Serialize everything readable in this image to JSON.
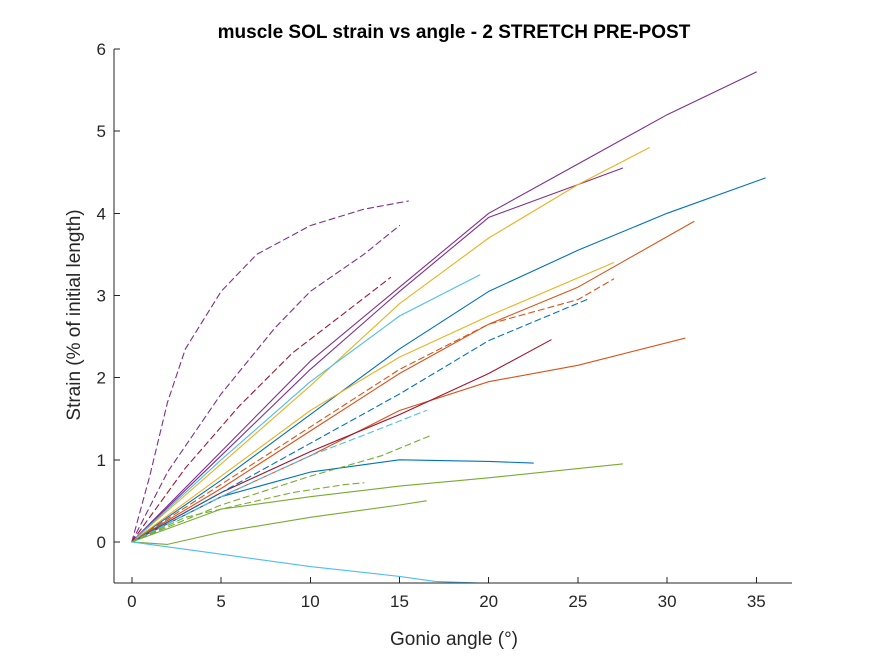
{
  "chart_data": {
    "type": "line",
    "title": "muscle SOL strain vs angle - 2 STRETCH PRE-POST",
    "xlabel": "Gonio angle (°)",
    "ylabel": "Strain (% of initial length)",
    "xlim": [
      -1,
      37
    ],
    "ylim": [
      -0.5,
      6
    ],
    "xticks": [
      0,
      5,
      10,
      15,
      20,
      25,
      30,
      35
    ],
    "yticks": [
      0,
      1,
      2,
      3,
      4,
      5,
      6
    ],
    "grid": false,
    "legend": "none",
    "series": [
      {
        "color": "#7E2F8E",
        "style": "solid",
        "x": [
          0,
          5,
          10,
          15,
          20,
          25,
          30,
          35
        ],
        "y": [
          0,
          1.1,
          2.2,
          3.1,
          4.0,
          4.6,
          5.2,
          5.72
        ]
      },
      {
        "color": "#7E2F8E",
        "style": "solid",
        "x": [
          0,
          5,
          10,
          15,
          20,
          25,
          27.5
        ],
        "y": [
          0,
          1.05,
          2.1,
          3.05,
          3.95,
          4.35,
          4.55
        ]
      },
      {
        "color": "#EDB120",
        "style": "solid",
        "x": [
          0,
          5,
          10,
          15,
          20,
          25,
          29
        ],
        "y": [
          0,
          0.95,
          1.9,
          2.9,
          3.7,
          4.35,
          4.8
        ]
      },
      {
        "color": "#0072BD",
        "style": "solid",
        "x": [
          0,
          5,
          10,
          15,
          20,
          25,
          30,
          35.5
        ],
        "y": [
          0,
          0.75,
          1.55,
          2.35,
          3.05,
          3.55,
          4.0,
          4.43
        ]
      },
      {
        "color": "#D95319",
        "style": "solid",
        "x": [
          0,
          5,
          10,
          15,
          20,
          25,
          31.5
        ],
        "y": [
          0,
          0.65,
          1.35,
          2.05,
          2.65,
          3.1,
          3.9
        ]
      },
      {
        "color": "#D95319",
        "style": "solid",
        "x": [
          0,
          5,
          10,
          15,
          20,
          25,
          31
        ],
        "y": [
          0,
          0.55,
          1.05,
          1.6,
          1.95,
          2.15,
          2.48
        ]
      },
      {
        "color": "#A2142F",
        "style": "solid",
        "x": [
          0,
          5,
          10,
          15,
          20,
          23.5
        ],
        "y": [
          0,
          0.6,
          1.1,
          1.55,
          2.05,
          2.46
        ]
      },
      {
        "color": "#4DBEEE",
        "style": "solid",
        "x": [
          0,
          5,
          10,
          15,
          19.5
        ],
        "y": [
          0,
          1.0,
          1.95,
          2.75,
          3.25
        ]
      },
      {
        "color": "#EDB120",
        "style": "solid",
        "x": [
          0,
          5,
          10,
          15,
          20,
          27
        ],
        "y": [
          0,
          0.8,
          1.6,
          2.25,
          2.75,
          3.4
        ]
      },
      {
        "color": "#0072BD",
        "style": "solid",
        "x": [
          0,
          5,
          10,
          15,
          20,
          22.5
        ],
        "y": [
          0,
          0.55,
          0.85,
          1.0,
          0.98,
          0.96
        ]
      },
      {
        "color": "#77AC30",
        "style": "solid",
        "x": [
          0,
          5,
          10,
          15,
          20,
          27.5
        ],
        "y": [
          0,
          0.4,
          0.55,
          0.68,
          0.78,
          0.95
        ]
      },
      {
        "color": "#77AC30",
        "style": "solid",
        "x": [
          0,
          2,
          5,
          10,
          15,
          16.5
        ],
        "y": [
          0,
          -0.03,
          0.12,
          0.3,
          0.45,
          0.5
        ]
      },
      {
        "color": "#4DBEEE",
        "style": "solid",
        "x": [
          0,
          5,
          10,
          15,
          17,
          19.5
        ],
        "y": [
          0,
          -0.15,
          -0.3,
          -0.42,
          -0.48,
          -0.5
        ]
      },
      {
        "color": "#7E2F8E",
        "style": "dashed",
        "x": [
          0,
          1,
          2,
          3,
          5,
          7,
          10,
          13,
          15.5
        ],
        "y": [
          0,
          0.8,
          1.7,
          2.35,
          3.05,
          3.5,
          3.85,
          4.05,
          4.15
        ]
      },
      {
        "color": "#7E2F8E",
        "style": "dashed",
        "x": [
          0,
          2,
          5,
          8,
          10,
          13,
          15
        ],
        "y": [
          0,
          0.85,
          1.8,
          2.6,
          3.05,
          3.5,
          3.85
        ]
      },
      {
        "color": "#A2142F",
        "style": "dashed",
        "x": [
          0,
          3,
          6,
          9,
          12,
          14.5
        ],
        "y": [
          0,
          0.9,
          1.65,
          2.3,
          2.8,
          3.22
        ]
      },
      {
        "color": "#D95319",
        "style": "dashed",
        "x": [
          0,
          5,
          10,
          15,
          20,
          25,
          27
        ],
        "y": [
          0,
          0.7,
          1.4,
          2.1,
          2.65,
          2.95,
          3.2
        ]
      },
      {
        "color": "#0072BD",
        "style": "dashed",
        "x": [
          0,
          5,
          10,
          15,
          20,
          25.5
        ],
        "y": [
          0,
          0.6,
          1.2,
          1.8,
          2.45,
          2.95
        ]
      },
      {
        "color": "#4DBEEE",
        "style": "dashed",
        "x": [
          0,
          5,
          10,
          13,
          16.5
        ],
        "y": [
          0,
          0.55,
          1.05,
          1.3,
          1.6
        ]
      },
      {
        "color": "#77AC30",
        "style": "dashed",
        "x": [
          0,
          5,
          10,
          14,
          16.8
        ],
        "y": [
          0,
          0.45,
          0.8,
          1.05,
          1.3
        ]
      },
      {
        "color": "#77AC30",
        "style": "dashed",
        "x": [
          0,
          3,
          6,
          9,
          12,
          13
        ],
        "y": [
          0,
          0.3,
          0.45,
          0.6,
          0.7,
          0.72
        ]
      }
    ]
  }
}
